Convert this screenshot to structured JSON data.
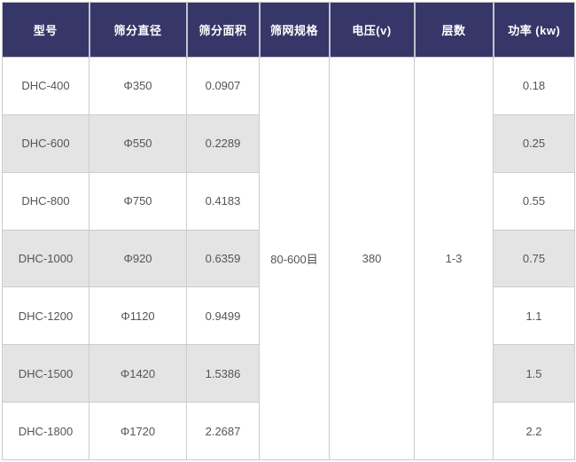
{
  "table": {
    "headers": {
      "model": "型号",
      "diameter": "筛分直径",
      "area": "筛分面积",
      "mesh": "筛网规格",
      "voltage": "电压(v)",
      "layers": "层数",
      "power": "功率 (kw)"
    },
    "rows": [
      {
        "model": "DHC-400",
        "diameter": "Φ350",
        "area": "0.0907",
        "power": "0.18"
      },
      {
        "model": "DHC-600",
        "diameter": "Φ550",
        "area": "0.2289",
        "power": "0.25"
      },
      {
        "model": "DHC-800",
        "diameter": "Φ750",
        "area": "0.4183",
        "power": "0.55"
      },
      {
        "model": "DHC-1000",
        "diameter": "Φ920",
        "area": "0.6359",
        "power": "0.75"
      },
      {
        "model": "DHC-1200",
        "diameter": "Φ1120",
        "area": "0.9499",
        "power": "1.1"
      },
      {
        "model": "DHC-1500",
        "diameter": "Φ1420",
        "area": "1.5386",
        "power": "1.5"
      },
      {
        "model": "DHC-1800",
        "diameter": "Φ1720",
        "area": "2.2687",
        "power": "2.2"
      }
    ],
    "merged": {
      "mesh": "80-600目",
      "voltage": "380",
      "layers": "1-3"
    }
  },
  "colors": {
    "header_bg": "#363668",
    "header_text": "#ffffff",
    "row_stripe": "#e4e4e4",
    "cell_border": "#cccccc",
    "cell_text": "#55555a"
  },
  "chart_data": {
    "type": "table",
    "columns": [
      "型号",
      "筛分直径",
      "筛分面积",
      "筛网规格",
      "电压(v)",
      "层数",
      "功率 (kw)"
    ],
    "rows": [
      [
        "DHC-400",
        "Φ350",
        "0.0907",
        "80-600目",
        "380",
        "1-3",
        "0.18"
      ],
      [
        "DHC-600",
        "Φ550",
        "0.2289",
        "80-600目",
        "380",
        "1-3",
        "0.25"
      ],
      [
        "DHC-800",
        "Φ750",
        "0.4183",
        "80-600目",
        "380",
        "1-3",
        "0.55"
      ],
      [
        "DHC-1000",
        "Φ920",
        "0.6359",
        "80-600目",
        "380",
        "1-3",
        "0.75"
      ],
      [
        "DHC-1200",
        "Φ1120",
        "0.9499",
        "80-600目",
        "380",
        "1-3",
        "1.1"
      ],
      [
        "DHC-1500",
        "Φ1420",
        "1.5386",
        "80-600目",
        "380",
        "1-3",
        "1.5"
      ],
      [
        "DHC-1800",
        "Φ1720",
        "2.2687",
        "80-600目",
        "380",
        "1-3",
        "2.2"
      ]
    ],
    "merged_columns": {
      "筛网规格": "80-600目",
      "电压(v)": "380",
      "层数": "1-3"
    },
    "legend_position": "none",
    "grid": true
  }
}
